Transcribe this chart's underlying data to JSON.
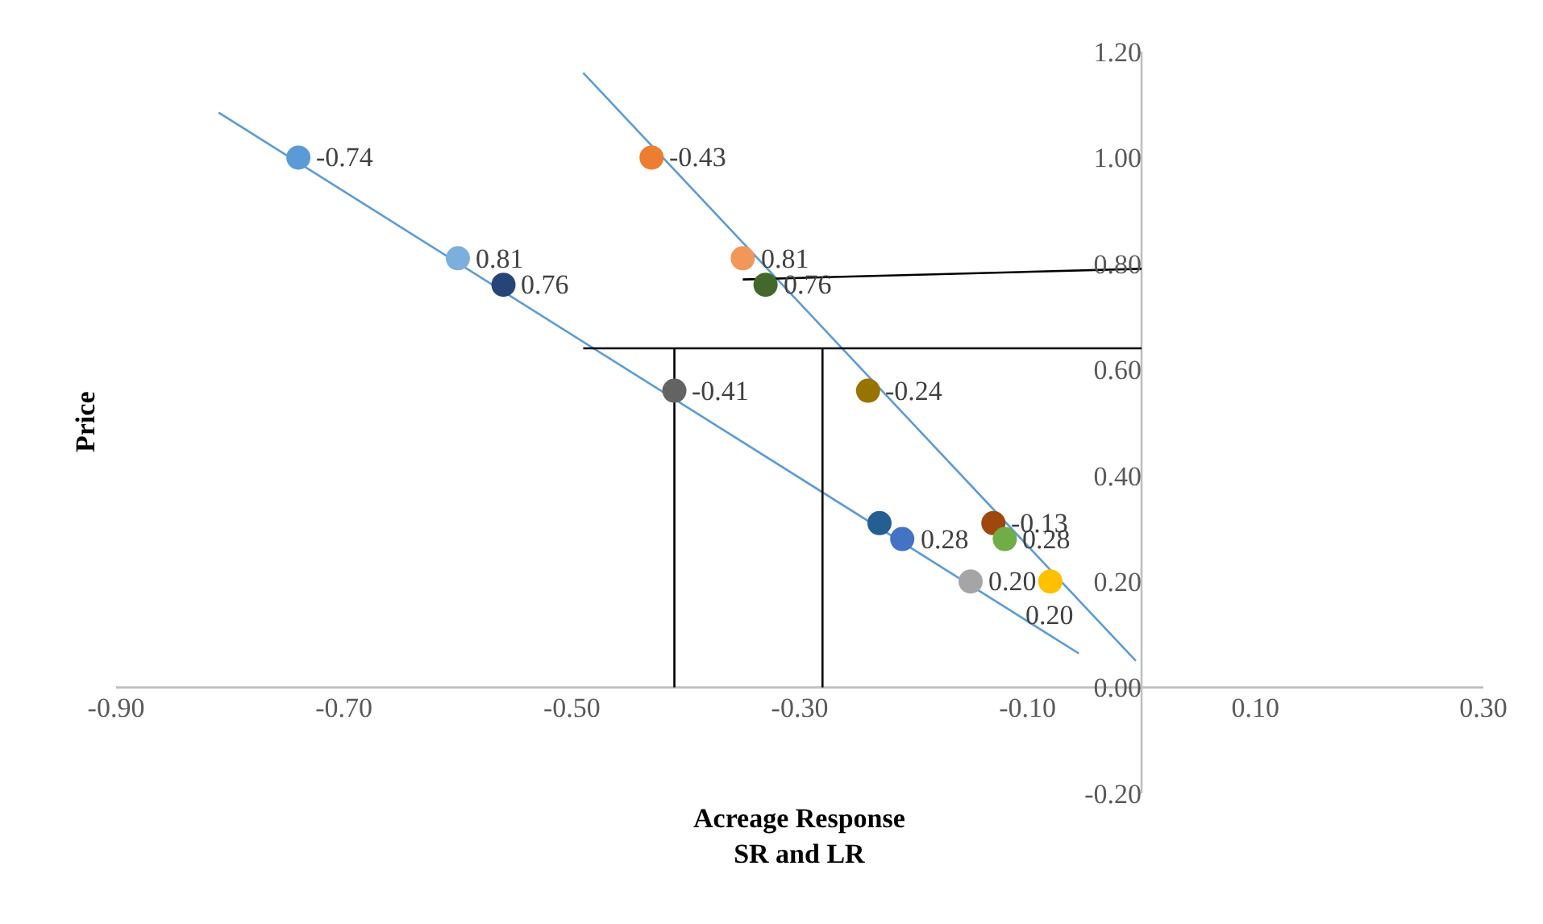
{
  "chart_data": {
    "type": "scatter",
    "xlabel": "Acreage Response\nSR and LR",
    "ylabel": "Price",
    "xlim": [
      -0.9,
      0.3
    ],
    "ylim": [
      -0.2,
      1.2
    ],
    "xticks": [
      {
        "value": -0.9,
        "label": "-0.90"
      },
      {
        "value": -0.7,
        "label": "-0.70"
      },
      {
        "value": -0.5,
        "label": "-0.50"
      },
      {
        "value": -0.3,
        "label": "-0.30"
      },
      {
        "value": -0.1,
        "label": "-0.10"
      },
      {
        "value": 0.1,
        "label": "0.10"
      },
      {
        "value": 0.3,
        "label": "0.30"
      }
    ],
    "yticks": [
      {
        "value": -0.2,
        "label": "-0.20"
      },
      {
        "value": 0,
        "label": "0.00"
      },
      {
        "value": 0.2,
        "label": "0.20"
      },
      {
        "value": 0.4,
        "label": "0.40"
      },
      {
        "value": 0.6,
        "label": "0.60"
      },
      {
        "value": 0.8,
        "label": "0.80"
      },
      {
        "value": 1.0,
        "label": "1.00"
      },
      {
        "value": 1.2,
        "label": "1.20"
      }
    ],
    "grid": false,
    "annotations": [
      {
        "text": "-0.74",
        "x": -0.74,
        "y": 1.0
      },
      {
        "text": "-0.43",
        "x": -0.43,
        "y": 1.0
      },
      {
        "text": "0.81",
        "x": -0.6,
        "y": 0.81
      },
      {
        "text": "0.76",
        "x": -0.56,
        "y": 0.76
      },
      {
        "text": "0.81",
        "x": -0.35,
        "y": 0.81
      },
      {
        "text": "0.76",
        "x": -0.33,
        "y": 0.76
      },
      {
        "text": "-0.41",
        "x": -0.41,
        "y": 0.56
      },
      {
        "text": "-0.24",
        "x": -0.24,
        "y": 0.56
      },
      {
        "text": "0.28",
        "x": -0.21,
        "y": 0.28
      },
      {
        "text": "0.20",
        "x": -0.15,
        "y": 0.2
      },
      {
        "text": "-0.13",
        "x": -0.13,
        "y": 0.31
      },
      {
        "text": "0.28",
        "x": -0.12,
        "y": 0.28
      },
      {
        "text": "0.20",
        "x": -0.08,
        "y": 0.2
      }
    ],
    "series": [
      {
        "type": "line",
        "color": "#5b9bd5",
        "x": [
          -0.81,
          -0.055
        ],
        "values": [
          1.085,
          0.064
        ]
      },
      {
        "type": "line",
        "color": "#5b9bd5",
        "x": [
          -0.49,
          -0.005
        ],
        "values": [
          1.16,
          0.05
        ]
      },
      {
        "type": "line",
        "color": "#000000",
        "x": [
          -0.49,
          0.0
        ],
        "values": [
          0.64,
          0.64
        ]
      },
      {
        "type": "line",
        "color": "#000000",
        "x": [
          -0.41,
          -0.41
        ],
        "values": [
          0.0,
          0.64
        ]
      },
      {
        "type": "line",
        "color": "#000000",
        "x": [
          -0.28,
          -0.28
        ],
        "values": [
          0.0,
          0.64
        ]
      },
      {
        "type": "line",
        "color": "#000000",
        "x": [
          -0.35,
          0.0
        ],
        "values": [
          0.77,
          0.79
        ]
      },
      {
        "marker": "circle",
        "x": [
          -0.74,
          -0.43,
          -0.6,
          -0.56,
          -0.35,
          -0.33,
          -0.41,
          -0.24,
          -0.23,
          -0.21,
          -0.15,
          -0.13,
          -0.12,
          -0.08
        ],
        "values": [
          1.0,
          1.0,
          0.81,
          0.76,
          0.81,
          0.76,
          0.56,
          0.56,
          0.31,
          0.28,
          0.2,
          0.31,
          0.28,
          0.2
        ],
        "colors": [
          "#5b9bd5",
          "#ed7d31",
          "#7cafdd",
          "#264478",
          "#f1975a",
          "#43682b",
          "#636363",
          "#997300",
          "#255e91",
          "#4472c4",
          "#a5a5a5",
          "#9e480e",
          "#70ad47",
          "#ffc000"
        ]
      }
    ]
  }
}
